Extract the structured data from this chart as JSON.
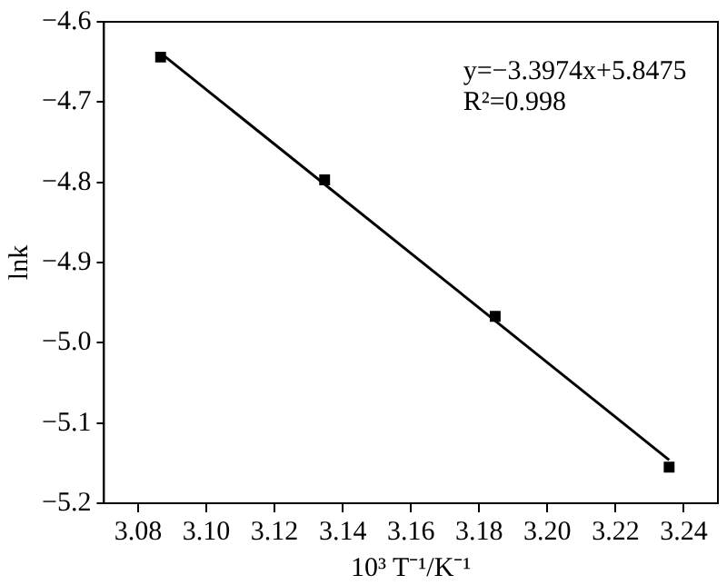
{
  "chart_data": {
    "type": "scatter",
    "xlabel": "10³ T⁻¹/K⁻¹",
    "ylabel": "lnk",
    "series": [
      {
        "color": "#000000",
        "x": [
          3.0866,
          3.1347,
          3.1847,
          3.2357
        ],
        "values": [
          -4.644,
          -4.797,
          -4.967,
          -5.155
        ],
        "marker": "square"
      },
      {
        "type": "line",
        "color": "#000000",
        "x": [
          3.0866,
          3.2357
        ],
        "values": [
          -4.639,
          -5.146
        ],
        "marker": "none",
        "line_style": "solid"
      }
    ],
    "xlim": [
      3.07,
      3.25
    ],
    "xticks": [
      {
        "value": 3.08,
        "label": "3.08"
      },
      {
        "value": 3.1,
        "label": "3.10"
      },
      {
        "value": 3.12,
        "label": "3.12"
      },
      {
        "value": 3.14,
        "label": "3.14"
      },
      {
        "value": 3.16,
        "label": "3.16"
      },
      {
        "value": 3.18,
        "label": "3.18"
      },
      {
        "value": 3.2,
        "label": "3.20"
      },
      {
        "value": 3.22,
        "label": "3.22"
      },
      {
        "value": 3.24,
        "label": "3.24"
      }
    ],
    "ylim": [
      -5.2,
      -4.6
    ],
    "yticks": [
      {
        "value": -5.2,
        "label": "−5.2"
      },
      {
        "value": -5.1,
        "label": "−5.1"
      },
      {
        "value": -5.0,
        "label": "−5.0"
      },
      {
        "value": -4.9,
        "label": "−4.9"
      },
      {
        "value": -4.8,
        "label": "−4.8"
      },
      {
        "value": -4.7,
        "label": "−4.7"
      },
      {
        "value": -4.6,
        "label": "−4.6"
      }
    ],
    "annotations": [
      "y=−3.3974x+5.8475",
      "R²=0.998"
    ],
    "grid": false,
    "legend": false
  }
}
